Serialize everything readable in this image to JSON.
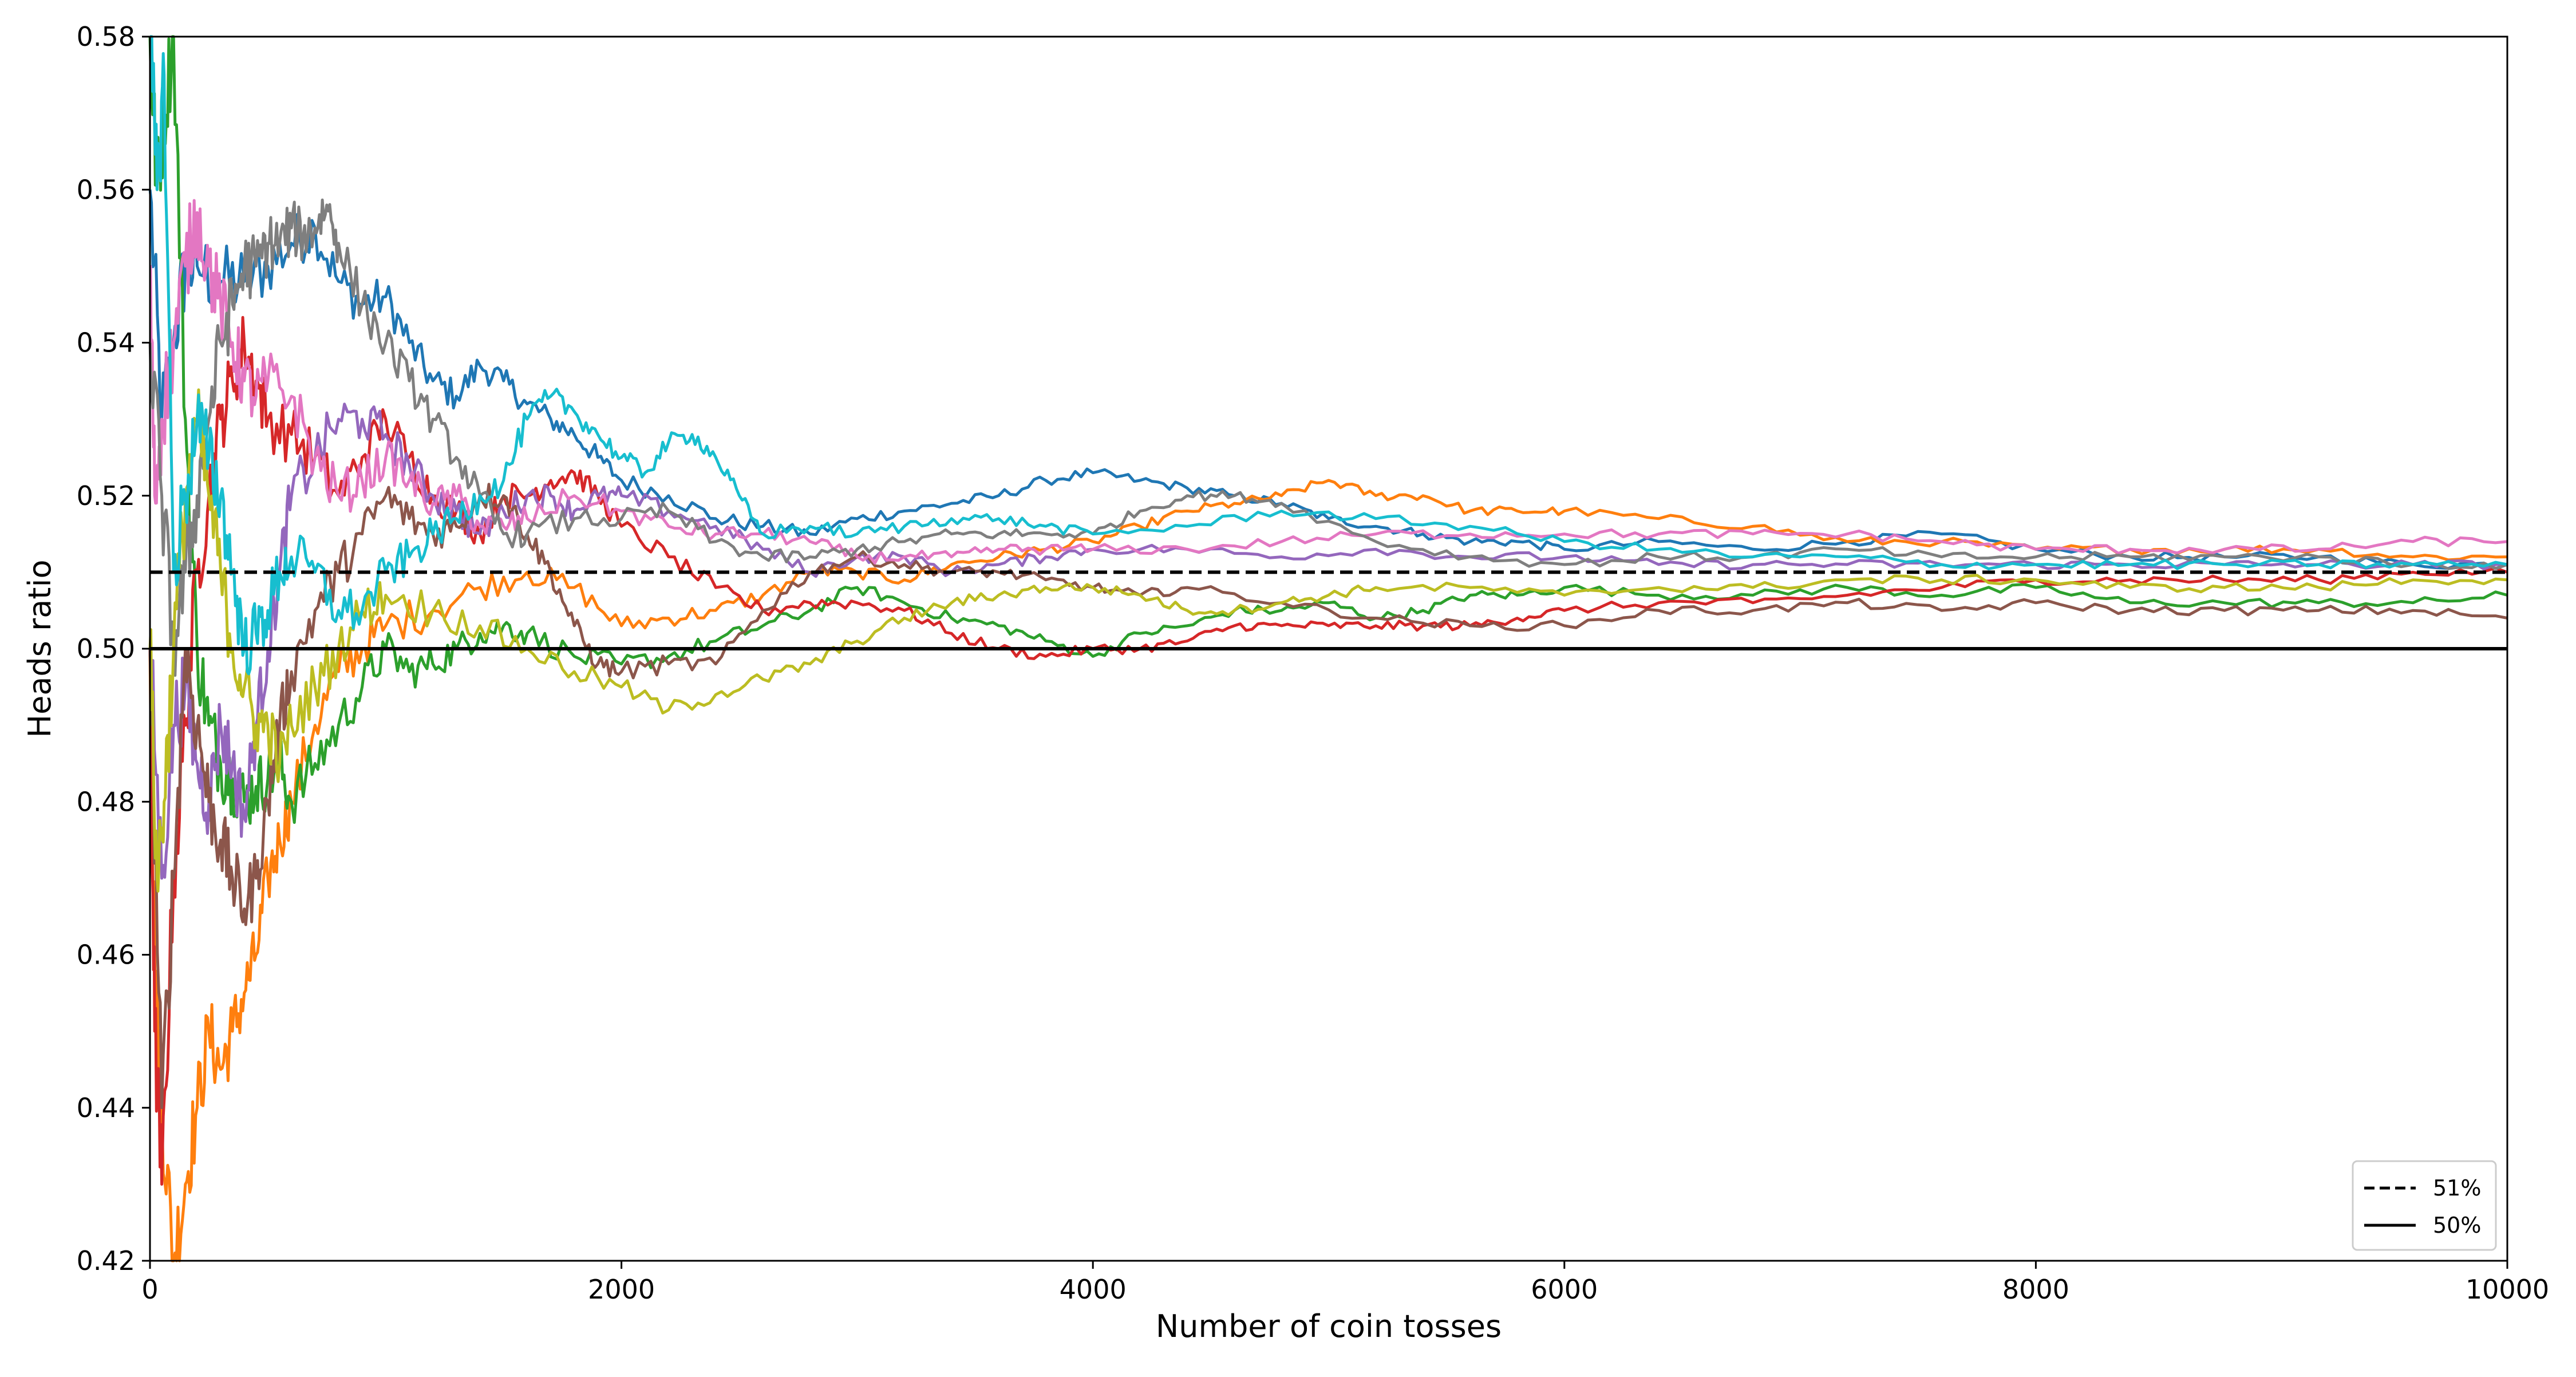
{
  "chart_data": {
    "type": "line",
    "title": "",
    "xlabel": "Number of coin tosses",
    "ylabel": "Heads ratio",
    "xlim": [
      0,
      10000
    ],
    "ylim": [
      0.42,
      0.58
    ],
    "xticks": [
      0,
      2000,
      4000,
      6000,
      8000,
      10000
    ],
    "xtick_labels": [
      "0",
      "2000",
      "4000",
      "6000",
      "8000",
      "10000"
    ],
    "yticks": [
      0.42,
      0.44,
      0.46,
      0.48,
      0.5,
      0.52,
      0.54,
      0.56,
      0.58
    ],
    "ytick_labels": [
      "0.42",
      "0.44",
      "0.46",
      "0.48",
      "0.50",
      "0.52",
      "0.54",
      "0.56",
      "0.58"
    ],
    "grid": false,
    "legend_position": "bottom-right",
    "reference_lines": [
      {
        "name": "51%",
        "y": 0.51,
        "style": "dashed",
        "color": "#000000"
      },
      {
        "name": "50%",
        "y": 0.5,
        "style": "solid",
        "color": "#000000"
      }
    ],
    "series": [
      {
        "color": "#1f77b4",
        "x": [
          0,
          50,
          100,
          150,
          200,
          300,
          400,
          500,
          600,
          700,
          800,
          900,
          1000,
          1100,
          1200,
          1300,
          1400,
          1500,
          1600,
          1700,
          1800,
          1900,
          2000,
          2200,
          2400,
          2600,
          2800,
          3000,
          3200,
          3400,
          3600,
          3800,
          4000,
          4200,
          4400,
          4600,
          4800,
          5000,
          5200,
          5400,
          5600,
          5800,
          6000,
          6400,
          6800,
          7200,
          7600,
          8000,
          8400,
          8800,
          9200,
          9600,
          10000
        ],
        "y": [
          0.56,
          0.53,
          0.54,
          0.55,
          0.55,
          0.548,
          0.548,
          0.55,
          0.553,
          0.555,
          0.548,
          0.545,
          0.546,
          0.54,
          0.535,
          0.533,
          0.537,
          0.535,
          0.532,
          0.53,
          0.528,
          0.525,
          0.522,
          0.52,
          0.517,
          0.516,
          0.515,
          0.517,
          0.518,
          0.519,
          0.52,
          0.522,
          0.523,
          0.522,
          0.521,
          0.52,
          0.519,
          0.517,
          0.516,
          0.515,
          0.514,
          0.514,
          0.513,
          0.514,
          0.513,
          0.514,
          0.515,
          0.513,
          0.512,
          0.512,
          0.512,
          0.511,
          0.511
        ]
      },
      {
        "color": "#ff7f0e",
        "x": [
          0,
          20,
          50,
          100,
          150,
          200,
          250,
          300,
          350,
          400,
          450,
          500,
          550,
          600,
          700,
          800,
          900,
          1000,
          1200,
          1400,
          1600,
          1800,
          2000,
          2200,
          2400,
          2600,
          2800,
          3000,
          3200,
          3400,
          3600,
          3800,
          4000,
          4200,
          4400,
          4600,
          4800,
          5000,
          5200,
          5400,
          5600,
          5800,
          6000,
          6400,
          6800,
          7200,
          7600,
          8000,
          8400,
          8800,
          9200,
          9600,
          10000
        ],
        "y": [
          0.5,
          0.46,
          0.44,
          0.42,
          0.43,
          0.44,
          0.45,
          0.445,
          0.45,
          0.455,
          0.46,
          0.47,
          0.475,
          0.48,
          0.49,
          0.497,
          0.5,
          0.503,
          0.505,
          0.508,
          0.51,
          0.508,
          0.503,
          0.504,
          0.505,
          0.507,
          0.51,
          0.51,
          0.509,
          0.511,
          0.512,
          0.513,
          0.514,
          0.516,
          0.518,
          0.519,
          0.52,
          0.522,
          0.52,
          0.52,
          0.518,
          0.518,
          0.518,
          0.517,
          0.516,
          0.514,
          0.514,
          0.513,
          0.513,
          0.513,
          0.513,
          0.512,
          0.512
        ]
      },
      {
        "color": "#2ca02c",
        "x": [
          0,
          30,
          60,
          100,
          150,
          200,
          250,
          300,
          350,
          400,
          450,
          500,
          550,
          600,
          700,
          800,
          900,
          1000,
          1100,
          1200,
          1300,
          1400,
          1500,
          1600,
          1800,
          2000,
          2200,
          2400,
          2600,
          2800,
          3000,
          3200,
          3400,
          3600,
          3800,
          4000,
          4200,
          4400,
          4600,
          4800,
          5000,
          5200,
          5400,
          5600,
          5800,
          6000,
          6400,
          6800,
          7200,
          7600,
          8000,
          8400,
          8800,
          9200,
          9600,
          10000
        ],
        "y": [
          0.58,
          0.56,
          0.57,
          0.58,
          0.53,
          0.5,
          0.49,
          0.485,
          0.483,
          0.48,
          0.482,
          0.483,
          0.485,
          0.48,
          0.485,
          0.49,
          0.495,
          0.5,
          0.497,
          0.498,
          0.5,
          0.502,
          0.503,
          0.502,
          0.499,
          0.498,
          0.499,
          0.501,
          0.503,
          0.505,
          0.508,
          0.506,
          0.504,
          0.503,
          0.501,
          0.499,
          0.502,
          0.503,
          0.505,
          0.505,
          0.506,
          0.504,
          0.505,
          0.507,
          0.507,
          0.508,
          0.507,
          0.507,
          0.508,
          0.507,
          0.508,
          0.506,
          0.506,
          0.506,
          0.506,
          0.507
        ]
      },
      {
        "color": "#d62728",
        "x": [
          0,
          20,
          50,
          100,
          150,
          200,
          250,
          300,
          350,
          400,
          450,
          500,
          600,
          700,
          800,
          900,
          1000,
          1100,
          1200,
          1300,
          1400,
          1500,
          1600,
          1700,
          1800,
          1900,
          2000,
          2200,
          2400,
          2600,
          2800,
          3000,
          3200,
          3400,
          3600,
          3800,
          4000,
          4200,
          4400,
          4600,
          4800,
          5000,
          5200,
          5400,
          5600,
          5800,
          6000,
          6400,
          6800,
          7200,
          7600,
          8000,
          8400,
          8800,
          9200,
          9600,
          10000
        ],
        "y": [
          0.5,
          0.45,
          0.43,
          0.47,
          0.49,
          0.51,
          0.52,
          0.53,
          0.535,
          0.54,
          0.535,
          0.53,
          0.528,
          0.525,
          0.52,
          0.525,
          0.53,
          0.525,
          0.52,
          0.518,
          0.515,
          0.52,
          0.52,
          0.522,
          0.523,
          0.52,
          0.516,
          0.512,
          0.508,
          0.505,
          0.506,
          0.506,
          0.505,
          0.502,
          0.5,
          0.499,
          0.5,
          0.5,
          0.501,
          0.503,
          0.503,
          0.503,
          0.503,
          0.503,
          0.503,
          0.504,
          0.505,
          0.506,
          0.506,
          0.507,
          0.508,
          0.509,
          0.509,
          0.509,
          0.509,
          0.51,
          0.51
        ]
      },
      {
        "color": "#9467bd",
        "x": [
          0,
          50,
          100,
          150,
          200,
          250,
          300,
          350,
          400,
          450,
          500,
          550,
          600,
          700,
          800,
          900,
          1000,
          1100,
          1200,
          1300,
          1400,
          1500,
          1600,
          1700,
          1800,
          1900,
          2000,
          2200,
          2400,
          2600,
          2800,
          3000,
          3200,
          3400,
          3600,
          3800,
          4000,
          4400,
          4800,
          5200,
          5600,
          6000,
          6400,
          6800,
          7200,
          7600,
          8000,
          8400,
          8800,
          9200,
          9600,
          10000
        ],
        "y": [
          0.5,
          0.47,
          0.49,
          0.495,
          0.485,
          0.48,
          0.49,
          0.485,
          0.478,
          0.49,
          0.5,
          0.51,
          0.52,
          0.525,
          0.53,
          0.53,
          0.528,
          0.524,
          0.52,
          0.518,
          0.515,
          0.518,
          0.52,
          0.52,
          0.518,
          0.52,
          0.52,
          0.518,
          0.516,
          0.513,
          0.51,
          0.512,
          0.512,
          0.51,
          0.511,
          0.512,
          0.513,
          0.513,
          0.512,
          0.513,
          0.512,
          0.512,
          0.511,
          0.511,
          0.511,
          0.511,
          0.511,
          0.511,
          0.511,
          0.511,
          0.511,
          0.511
        ]
      },
      {
        "color": "#8c564b",
        "x": [
          0,
          50,
          100,
          150,
          200,
          250,
          300,
          350,
          400,
          450,
          500,
          550,
          600,
          700,
          800,
          900,
          1000,
          1100,
          1200,
          1300,
          1400,
          1500,
          1600,
          1700,
          1800,
          1900,
          2000,
          2200,
          2400,
          2600,
          2800,
          3000,
          3200,
          3400,
          3600,
          3800,
          4000,
          4200,
          4400,
          4800,
          5200,
          5600,
          6000,
          6400,
          6800,
          7200,
          7600,
          8000,
          8400,
          8800,
          9200,
          9600,
          10000
        ],
        "y": [
          0.5,
          0.44,
          0.47,
          0.5,
          0.49,
          0.48,
          0.475,
          0.47,
          0.466,
          0.47,
          0.48,
          0.49,
          0.497,
          0.505,
          0.51,
          0.515,
          0.52,
          0.517,
          0.515,
          0.516,
          0.52,
          0.52,
          0.515,
          0.51,
          0.503,
          0.498,
          0.497,
          0.498,
          0.498,
          0.505,
          0.51,
          0.512,
          0.511,
          0.51,
          0.51,
          0.509,
          0.508,
          0.507,
          0.508,
          0.506,
          0.504,
          0.503,
          0.503,
          0.505,
          0.505,
          0.506,
          0.505,
          0.506,
          0.505,
          0.505,
          0.505,
          0.505,
          0.504
        ]
      },
      {
        "color": "#e377c2",
        "x": [
          0,
          20,
          50,
          100,
          150,
          200,
          250,
          300,
          350,
          400,
          450,
          500,
          600,
          700,
          800,
          900,
          1000,
          1100,
          1200,
          1300,
          1400,
          1500,
          1600,
          1800,
          2000,
          2200,
          2400,
          2600,
          2800,
          3000,
          3200,
          3400,
          3600,
          3800,
          4000,
          4400,
          4800,
          5200,
          5600,
          6000,
          6400,
          6800,
          7200,
          7600,
          8000,
          8400,
          8800,
          9200,
          9600,
          10000
        ],
        "y": [
          0.55,
          0.52,
          0.53,
          0.54,
          0.55,
          0.557,
          0.55,
          0.545,
          0.54,
          0.535,
          0.533,
          0.535,
          0.533,
          0.525,
          0.52,
          0.522,
          0.525,
          0.522,
          0.519,
          0.52,
          0.516,
          0.516,
          0.517,
          0.52,
          0.518,
          0.516,
          0.515,
          0.515,
          0.514,
          0.512,
          0.512,
          0.512,
          0.513,
          0.513,
          0.513,
          0.513,
          0.514,
          0.515,
          0.515,
          0.515,
          0.515,
          0.515,
          0.515,
          0.514,
          0.513,
          0.513,
          0.513,
          0.513,
          0.514,
          0.514
        ]
      },
      {
        "color": "#7f7f7f",
        "x": [
          0,
          50,
          100,
          150,
          200,
          250,
          300,
          350,
          400,
          450,
          500,
          550,
          600,
          650,
          700,
          750,
          800,
          900,
          1000,
          1100,
          1200,
          1300,
          1400,
          1500,
          1600,
          1800,
          2000,
          2200,
          2400,
          2600,
          2800,
          3000,
          3200,
          3400,
          3600,
          3800,
          4000,
          4200,
          4400,
          4600,
          4800,
          5200,
          5600,
          6000,
          6400,
          6800,
          7200,
          7600,
          8000,
          8400,
          8800,
          9200,
          9600,
          10000
        ],
        "y": [
          0.54,
          0.52,
          0.5,
          0.51,
          0.52,
          0.53,
          0.54,
          0.545,
          0.55,
          0.55,
          0.553,
          0.553,
          0.555,
          0.554,
          0.555,
          0.558,
          0.553,
          0.545,
          0.54,
          0.535,
          0.53,
          0.525,
          0.52,
          0.515,
          0.515,
          0.517,
          0.517,
          0.518,
          0.514,
          0.512,
          0.512,
          0.513,
          0.514,
          0.515,
          0.515,
          0.515,
          0.515,
          0.518,
          0.52,
          0.52,
          0.519,
          0.514,
          0.512,
          0.511,
          0.512,
          0.512,
          0.513,
          0.512,
          0.512,
          0.512,
          0.512,
          0.512,
          0.511,
          0.511
        ]
      },
      {
        "color": "#bcbd22",
        "x": [
          0,
          30,
          60,
          100,
          150,
          200,
          250,
          300,
          350,
          400,
          450,
          500,
          550,
          600,
          700,
          800,
          900,
          1000,
          1200,
          1400,
          1600,
          1800,
          2000,
          2200,
          2400,
          2600,
          2800,
          3000,
          3200,
          3400,
          3600,
          3800,
          4000,
          4200,
          4400,
          4600,
          4800,
          5000,
          5200,
          5600,
          6000,
          6400,
          6800,
          7200,
          7600,
          8000,
          8400,
          8800,
          9200,
          9600,
          10000
        ],
        "y": [
          0.5,
          0.47,
          0.48,
          0.5,
          0.52,
          0.53,
          0.52,
          0.51,
          0.5,
          0.495,
          0.49,
          0.49,
          0.485,
          0.49,
          0.495,
          0.5,
          0.505,
          0.507,
          0.505,
          0.503,
          0.5,
          0.497,
          0.495,
          0.492,
          0.494,
          0.496,
          0.498,
          0.501,
          0.504,
          0.506,
          0.507,
          0.508,
          0.508,
          0.507,
          0.505,
          0.505,
          0.506,
          0.507,
          0.508,
          0.508,
          0.507,
          0.508,
          0.508,
          0.509,
          0.509,
          0.509,
          0.508,
          0.508,
          0.508,
          0.509,
          0.509
        ]
      },
      {
        "color": "#17becf",
        "x": [
          0,
          30,
          60,
          100,
          150,
          200,
          250,
          300,
          350,
          400,
          450,
          500,
          550,
          600,
          700,
          800,
          900,
          1000,
          1100,
          1200,
          1300,
          1400,
          1500,
          1600,
          1700,
          1800,
          1900,
          2000,
          2100,
          2200,
          2300,
          2400,
          2500,
          2600,
          2800,
          3000,
          3200,
          3400,
          3600,
          3800,
          4000,
          4400,
          4800,
          5200,
          5600,
          6000,
          6400,
          6800,
          7200,
          7600,
          8000,
          8400,
          8800,
          9200,
          9600,
          10000
        ],
        "y": [
          0.58,
          0.56,
          0.575,
          0.51,
          0.52,
          0.53,
          0.525,
          0.52,
          0.51,
          0.5,
          0.502,
          0.505,
          0.51,
          0.512,
          0.51,
          0.505,
          0.505,
          0.51,
          0.512,
          0.515,
          0.517,
          0.52,
          0.522,
          0.53,
          0.533,
          0.531,
          0.528,
          0.525,
          0.523,
          0.527,
          0.528,
          0.525,
          0.52,
          0.515,
          0.516,
          0.515,
          0.516,
          0.517,
          0.517,
          0.516,
          0.515,
          0.516,
          0.518,
          0.517,
          0.516,
          0.514,
          0.513,
          0.512,
          0.512,
          0.511,
          0.511,
          0.511,
          0.511,
          0.511,
          0.511,
          0.511
        ]
      }
    ]
  }
}
